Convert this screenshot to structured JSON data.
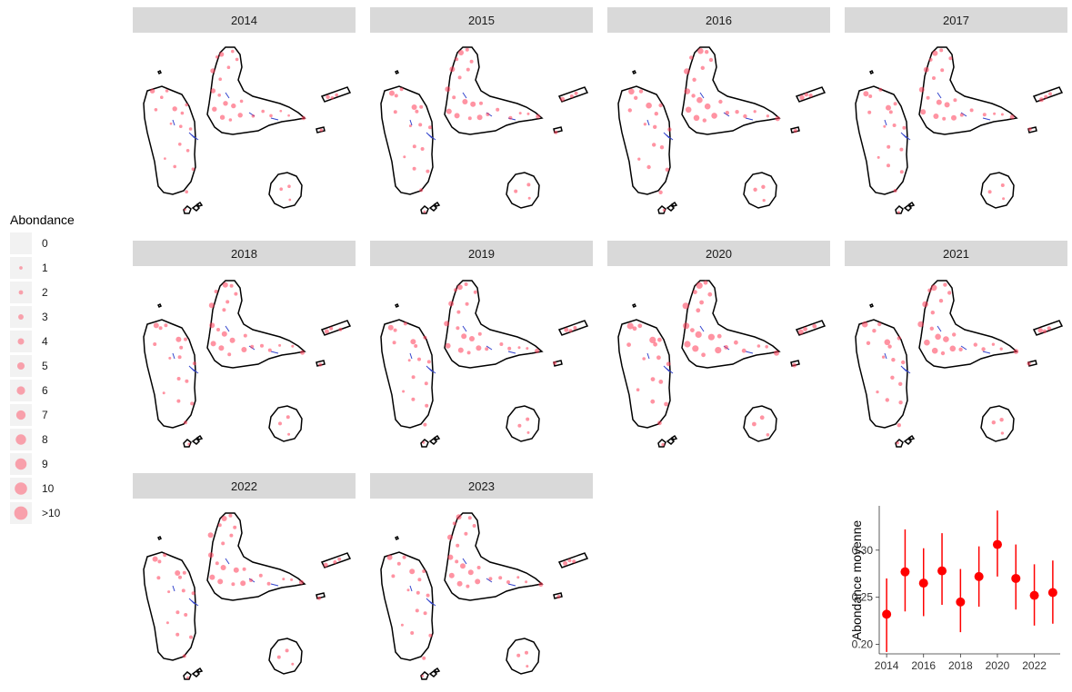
{
  "legend": {
    "title": "Abondance",
    "labels": [
      "0",
      "1",
      "2",
      "3",
      "4",
      "5",
      "6",
      "7",
      "8",
      "9",
      "10",
      ">10"
    ]
  },
  "colors": {
    "point": "#ff3b55",
    "trend": "#ff0000",
    "strip": "#d9d9d9",
    "outline": "#000000",
    "transect": "#3344cc"
  },
  "panels": [
    {
      "label": "2014",
      "density": 0.9
    },
    {
      "label": "2015",
      "density": 1.0
    },
    {
      "label": "2016",
      "density": 1.1
    },
    {
      "label": "2017",
      "density": 1.0
    },
    {
      "label": "2018",
      "density": 1.0
    },
    {
      "label": "2019",
      "density": 1.0
    },
    {
      "label": "2020",
      "density": 1.2
    },
    {
      "label": "2021",
      "density": 1.1
    },
    {
      "label": "2022",
      "density": 1.0
    },
    {
      "label": "2023",
      "density": 1.0
    }
  ],
  "chart_data": {
    "type": "scatter",
    "ylabel": "Abondance moyenne",
    "xlabel": "",
    "x": [
      2014,
      2015,
      2016,
      2017,
      2018,
      2019,
      2020,
      2021,
      2022,
      2023
    ],
    "y": [
      0.232,
      0.277,
      0.265,
      0.278,
      0.245,
      0.272,
      0.306,
      0.27,
      0.252,
      0.255
    ],
    "ymin": [
      0.192,
      0.235,
      0.23,
      0.242,
      0.213,
      0.24,
      0.272,
      0.237,
      0.22,
      0.222
    ],
    "ymax": [
      0.27,
      0.322,
      0.302,
      0.318,
      0.28,
      0.304,
      0.342,
      0.306,
      0.285,
      0.289
    ],
    "xticks": [
      2014,
      2016,
      2018,
      2020,
      2022
    ],
    "yticks": [
      "0.20",
      "0.25",
      "0.30"
    ],
    "ylim": [
      0.19,
      0.347
    ],
    "xlim": [
      2013.6,
      2023.4
    ],
    "grid": false,
    "legend": "none"
  }
}
